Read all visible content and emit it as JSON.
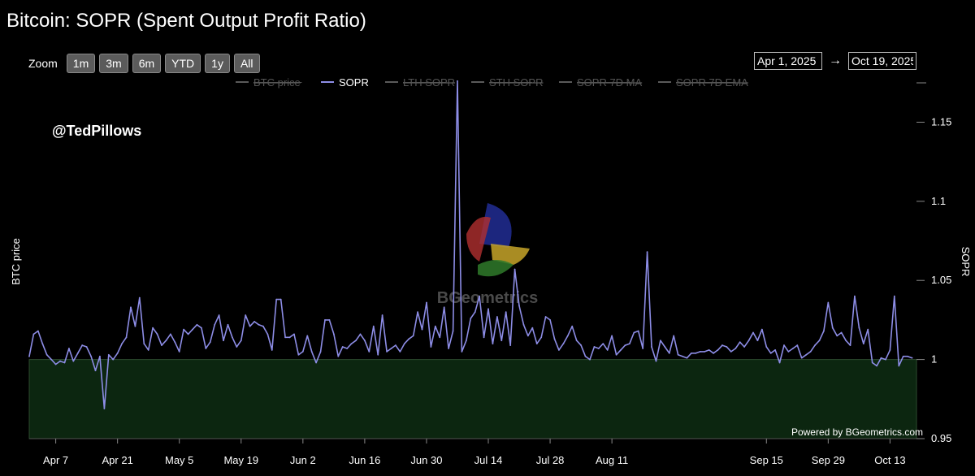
{
  "title": "Bitcoin: SOPR (Spent Output Profit Ratio)",
  "zoom": {
    "label": "Zoom",
    "buttons": [
      "1m",
      "3m",
      "6m",
      "YTD",
      "1y",
      "All"
    ]
  },
  "range": {
    "from": "Apr 1, 2025",
    "arrow": "→",
    "to": "Oct 19, 2025"
  },
  "watermark_handle": "@TedPillows",
  "watermark_brand": "BGeometrics",
  "credit": "Powered by BGeometrics.com",
  "colors": {
    "background": "#000000",
    "sopr_line": "#8d8de6",
    "below_one_fill": "#0c2610",
    "hidden_series": "#5a5a5a"
  },
  "chart_data": {
    "type": "line",
    "title": "Bitcoin: SOPR (Spent Output Profit Ratio)",
    "left_axis_label": "BTC price",
    "right_axis_label": "SOPR",
    "ylim": [
      0.95,
      1.18
    ],
    "y_ticks": [
      "0.95",
      "1",
      "1.05",
      "1.1",
      "1.15"
    ],
    "y_tick_values": [
      0.95,
      1.0,
      1.05,
      1.1,
      1.15
    ],
    "x_start": "2025-04-01",
    "x_end": "2025-10-19",
    "x_ticks": [
      {
        "label": "Apr 7",
        "date": "2025-04-07"
      },
      {
        "label": "Apr 21",
        "date": "2025-04-21"
      },
      {
        "label": "May 5",
        "date": "2025-05-05"
      },
      {
        "label": "May 19",
        "date": "2025-05-19"
      },
      {
        "label": "Jun 2",
        "date": "2025-06-02"
      },
      {
        "label": "Jun 16",
        "date": "2025-06-16"
      },
      {
        "label": "Jun 30",
        "date": "2025-06-30"
      },
      {
        "label": "Jul 14",
        "date": "2025-07-14"
      },
      {
        "label": "Jul 28",
        "date": "2025-07-28"
      },
      {
        "label": "Aug 11",
        "date": "2025-08-11"
      },
      {
        "label": "Sep 15",
        "date": "2025-09-15"
      },
      {
        "label": "Sep 29",
        "date": "2025-09-29"
      },
      {
        "label": "Oct 13",
        "date": "2025-10-13"
      }
    ],
    "legend": [
      {
        "name": "BTC price",
        "visible": false
      },
      {
        "name": "SOPR",
        "visible": true
      },
      {
        "name": "LTH SOPR",
        "visible": false
      },
      {
        "name": "STH SOPR",
        "visible": false
      },
      {
        "name": "SOPR 7D MA",
        "visible": false
      },
      {
        "name": "SOPR 7D EMA",
        "visible": false
      }
    ],
    "threshold_band": {
      "from": 0.95,
      "to": 1.0
    },
    "series": [
      {
        "name": "SOPR",
        "points": [
          [
            "2025-04-01",
            1.002
          ],
          [
            "2025-04-02",
            1.016
          ],
          [
            "2025-04-03",
            1.018
          ],
          [
            "2025-04-04",
            1.01
          ],
          [
            "2025-04-05",
            1.003
          ],
          [
            "2025-04-06",
            1.0
          ],
          [
            "2025-04-07",
            0.997
          ],
          [
            "2025-04-08",
            0.999
          ],
          [
            "2025-04-09",
            0.998
          ],
          [
            "2025-04-10",
            1.007
          ],
          [
            "2025-04-11",
            0.999
          ],
          [
            "2025-04-12",
            1.004
          ],
          [
            "2025-04-13",
            1.009
          ],
          [
            "2025-04-14",
            1.008
          ],
          [
            "2025-04-15",
            1.002
          ],
          [
            "2025-04-16",
            0.993
          ],
          [
            "2025-04-17",
            1.002
          ],
          [
            "2025-04-18",
            0.969
          ],
          [
            "2025-04-19",
            1.003
          ],
          [
            "2025-04-20",
            1.0
          ],
          [
            "2025-04-21",
            1.004
          ],
          [
            "2025-04-22",
            1.01
          ],
          [
            "2025-04-23",
            1.014
          ],
          [
            "2025-04-24",
            1.033
          ],
          [
            "2025-04-25",
            1.021
          ],
          [
            "2025-04-26",
            1.039
          ],
          [
            "2025-04-27",
            1.01
          ],
          [
            "2025-04-28",
            1.006
          ],
          [
            "2025-04-29",
            1.02
          ],
          [
            "2025-04-30",
            1.016
          ],
          [
            "2025-05-01",
            1.009
          ],
          [
            "2025-05-02",
            1.012
          ],
          [
            "2025-05-03",
            1.016
          ],
          [
            "2025-05-04",
            1.011
          ],
          [
            "2025-05-05",
            1.005
          ],
          [
            "2025-05-06",
            1.019
          ],
          [
            "2025-05-07",
            1.016
          ],
          [
            "2025-05-08",
            1.019
          ],
          [
            "2025-05-09",
            1.022
          ],
          [
            "2025-05-10",
            1.02
          ],
          [
            "2025-05-11",
            1.007
          ],
          [
            "2025-05-12",
            1.011
          ],
          [
            "2025-05-13",
            1.022
          ],
          [
            "2025-05-14",
            1.028
          ],
          [
            "2025-05-15",
            1.012
          ],
          [
            "2025-05-16",
            1.022
          ],
          [
            "2025-05-17",
            1.014
          ],
          [
            "2025-05-18",
            1.008
          ],
          [
            "2025-05-19",
            1.012
          ],
          [
            "2025-05-20",
            1.028
          ],
          [
            "2025-05-21",
            1.021
          ],
          [
            "2025-05-22",
            1.024
          ],
          [
            "2025-05-23",
            1.022
          ],
          [
            "2025-05-24",
            1.021
          ],
          [
            "2025-05-25",
            1.016
          ],
          [
            "2025-05-26",
            1.006
          ],
          [
            "2025-05-27",
            1.038
          ],
          [
            "2025-05-28",
            1.038
          ],
          [
            "2025-05-29",
            1.014
          ],
          [
            "2025-05-30",
            1.014
          ],
          [
            "2025-05-31",
            1.016
          ],
          [
            "2025-06-01",
            1.003
          ],
          [
            "2025-06-02",
            1.005
          ],
          [
            "2025-06-03",
            1.015
          ],
          [
            "2025-06-04",
            1.005
          ],
          [
            "2025-06-05",
            0.998
          ],
          [
            "2025-06-06",
            1.005
          ],
          [
            "2025-06-07",
            1.025
          ],
          [
            "2025-06-08",
            1.025
          ],
          [
            "2025-06-09",
            1.016
          ],
          [
            "2025-06-10",
            1.002
          ],
          [
            "2025-06-11",
            1.008
          ],
          [
            "2025-06-12",
            1.007
          ],
          [
            "2025-06-13",
            1.01
          ],
          [
            "2025-06-14",
            1.012
          ],
          [
            "2025-06-15",
            1.016
          ],
          [
            "2025-06-16",
            1.012
          ],
          [
            "2025-06-17",
            1.005
          ],
          [
            "2025-06-18",
            1.021
          ],
          [
            "2025-06-19",
            1.003
          ],
          [
            "2025-06-20",
            1.028
          ],
          [
            "2025-06-21",
            1.005
          ],
          [
            "2025-06-22",
            1.007
          ],
          [
            "2025-06-23",
            1.009
          ],
          [
            "2025-06-24",
            1.005
          ],
          [
            "2025-06-25",
            1.01
          ],
          [
            "2025-06-26",
            1.013
          ],
          [
            "2025-06-27",
            1.015
          ],
          [
            "2025-06-28",
            1.03
          ],
          [
            "2025-06-29",
            1.019
          ],
          [
            "2025-06-30",
            1.036
          ],
          [
            "2025-07-01",
            1.008
          ],
          [
            "2025-07-02",
            1.021
          ],
          [
            "2025-07-03",
            1.014
          ],
          [
            "2025-07-04",
            1.033
          ],
          [
            "2025-07-05",
            1.007
          ],
          [
            "2025-07-06",
            1.018
          ],
          [
            "2025-07-07",
            1.176
          ],
          [
            "2025-07-08",
            1.005
          ],
          [
            "2025-07-09",
            1.012
          ],
          [
            "2025-07-10",
            1.026
          ],
          [
            "2025-07-11",
            1.03
          ],
          [
            "2025-07-12",
            1.04
          ],
          [
            "2025-07-13",
            1.014
          ],
          [
            "2025-07-14",
            1.032
          ],
          [
            "2025-07-15",
            1.01
          ],
          [
            "2025-07-16",
            1.027
          ],
          [
            "2025-07-17",
            1.012
          ],
          [
            "2025-07-18",
            1.03
          ],
          [
            "2025-07-19",
            1.009
          ],
          [
            "2025-07-20",
            1.057
          ],
          [
            "2025-07-21",
            1.034
          ],
          [
            "2025-07-22",
            1.022
          ],
          [
            "2025-07-23",
            1.015
          ],
          [
            "2025-07-24",
            1.02
          ],
          [
            "2025-07-25",
            1.01
          ],
          [
            "2025-07-26",
            1.014
          ],
          [
            "2025-07-27",
            1.027
          ],
          [
            "2025-07-28",
            1.025
          ],
          [
            "2025-07-29",
            1.013
          ],
          [
            "2025-07-30",
            1.006
          ],
          [
            "2025-07-31",
            1.01
          ],
          [
            "2025-08-01",
            1.015
          ],
          [
            "2025-08-02",
            1.021
          ],
          [
            "2025-08-03",
            1.012
          ],
          [
            "2025-08-04",
            1.009
          ],
          [
            "2025-08-05",
            1.002
          ],
          [
            "2025-08-06",
            1.0
          ],
          [
            "2025-08-07",
            1.008
          ],
          [
            "2025-08-08",
            1.007
          ],
          [
            "2025-08-09",
            1.01
          ],
          [
            "2025-08-10",
            1.006
          ],
          [
            "2025-08-11",
            1.015
          ],
          [
            "2025-08-12",
            1.003
          ],
          [
            "2025-08-13",
            1.006
          ],
          [
            "2025-08-14",
            1.009
          ],
          [
            "2025-08-15",
            1.01
          ],
          [
            "2025-08-16",
            1.017
          ],
          [
            "2025-08-17",
            1.018
          ],
          [
            "2025-08-18",
            1.007
          ],
          [
            "2025-08-19",
            1.068
          ],
          [
            "2025-08-20",
            1.008
          ],
          [
            "2025-08-21",
            0.999
          ],
          [
            "2025-08-22",
            1.012
          ],
          [
            "2025-08-23",
            1.008
          ],
          [
            "2025-08-24",
            1.004
          ],
          [
            "2025-08-25",
            1.015
          ],
          [
            "2025-08-26",
            1.003
          ],
          [
            "2025-08-27",
            1.002
          ],
          [
            "2025-08-28",
            1.001
          ],
          [
            "2025-08-29",
            1.004
          ],
          [
            "2025-08-30",
            1.004
          ],
          [
            "2025-08-31",
            1.005
          ],
          [
            "2025-09-01",
            1.005
          ],
          [
            "2025-09-02",
            1.006
          ],
          [
            "2025-09-03",
            1.004
          ],
          [
            "2025-09-04",
            1.006
          ],
          [
            "2025-09-05",
            1.009
          ],
          [
            "2025-09-06",
            1.008
          ],
          [
            "2025-09-07",
            1.005
          ],
          [
            "2025-09-08",
            1.007
          ],
          [
            "2025-09-09",
            1.011
          ],
          [
            "2025-09-10",
            1.008
          ],
          [
            "2025-09-11",
            1.012
          ],
          [
            "2025-09-12",
            1.017
          ],
          [
            "2025-09-13",
            1.012
          ],
          [
            "2025-09-14",
            1.019
          ],
          [
            "2025-09-15",
            1.008
          ],
          [
            "2025-09-16",
            1.004
          ],
          [
            "2025-09-17",
            1.006
          ],
          [
            "2025-09-18",
            0.998
          ],
          [
            "2025-09-19",
            1.009
          ],
          [
            "2025-09-20",
            1.005
          ],
          [
            "2025-09-21",
            1.007
          ],
          [
            "2025-09-22",
            1.009
          ],
          [
            "2025-09-23",
            1.001
          ],
          [
            "2025-09-24",
            1.003
          ],
          [
            "2025-09-25",
            1.005
          ],
          [
            "2025-09-26",
            1.009
          ],
          [
            "2025-09-27",
            1.012
          ],
          [
            "2025-09-28",
            1.018
          ],
          [
            "2025-09-29",
            1.036
          ],
          [
            "2025-09-30",
            1.02
          ],
          [
            "2025-10-01",
            1.015
          ],
          [
            "2025-10-02",
            1.017
          ],
          [
            "2025-10-03",
            1.012
          ],
          [
            "2025-10-04",
            1.009
          ],
          [
            "2025-10-05",
            1.04
          ],
          [
            "2025-10-06",
            1.02
          ],
          [
            "2025-10-07",
            1.01
          ],
          [
            "2025-10-08",
            1.019
          ],
          [
            "2025-10-09",
            0.998
          ],
          [
            "2025-10-10",
            0.996
          ],
          [
            "2025-10-11",
            1.001
          ],
          [
            "2025-10-12",
            1.0
          ],
          [
            "2025-10-13",
            1.006
          ],
          [
            "2025-10-14",
            1.04
          ],
          [
            "2025-10-15",
            0.996
          ],
          [
            "2025-10-16",
            1.002
          ],
          [
            "2025-10-17",
            1.002
          ],
          [
            "2025-10-18",
            1.001
          ]
        ]
      }
    ]
  }
}
